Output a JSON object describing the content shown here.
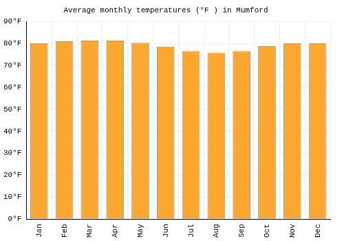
{
  "chart_data": {
    "type": "bar",
    "title": "Average monthly temperatures (°F ) in Mumford",
    "categories": [
      "Jan",
      "Feb",
      "Mar",
      "Apr",
      "May",
      "Jun",
      "Jul",
      "Aug",
      "Sep",
      "Oct",
      "Nov",
      "Dec"
    ],
    "values": [
      80,
      81,
      81.3,
      81.3,
      80.3,
      78.5,
      76.5,
      75.8,
      76.5,
      78.8,
      80,
      80
    ],
    "color": "#fca830",
    "ylim": [
      0,
      90
    ],
    "yticks": [
      {
        "value": 0,
        "label": "0°F"
      },
      {
        "value": 10,
        "label": "10°F"
      },
      {
        "value": 20,
        "label": "20°F"
      },
      {
        "value": 30,
        "label": "30°F"
      },
      {
        "value": 40,
        "label": "40°F"
      },
      {
        "value": 50,
        "label": "50°F"
      },
      {
        "value": 60,
        "label": "60°F"
      },
      {
        "value": 70,
        "label": "70°F"
      },
      {
        "value": 80,
        "label": "80°F"
      },
      {
        "value": 90,
        "label": "90°F"
      }
    ],
    "grid": true
  }
}
